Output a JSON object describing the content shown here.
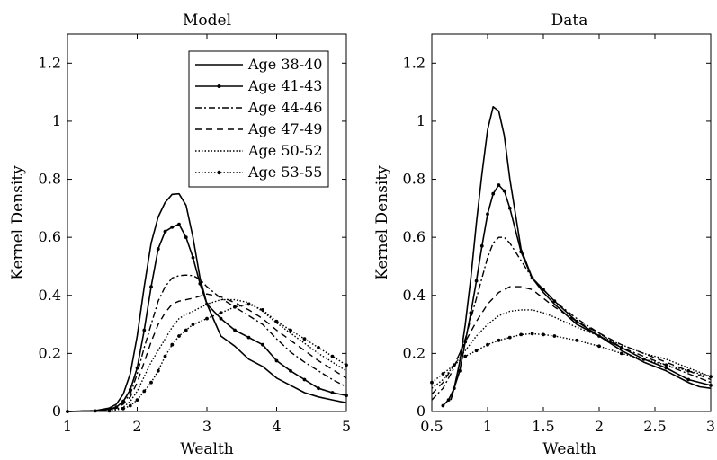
{
  "chart_data": [
    {
      "type": "line",
      "title": "Model",
      "xlabel": "Wealth",
      "ylabel": "Kernel Density",
      "xlim": [
        1,
        5
      ],
      "ylim": [
        0,
        1.3
      ],
      "xticks": [
        1,
        2,
        3,
        4,
        5
      ],
      "yticks": [
        0,
        0.2,
        0.4,
        0.6,
        0.8,
        1,
        1.2
      ],
      "xtick_labels": [
        "1",
        "2",
        "3",
        "4",
        "5"
      ],
      "ytick_labels": [
        "0",
        "0.2",
        "0.4",
        "0.6",
        "0.8",
        "1",
        "1.2"
      ],
      "grid": false,
      "legend_position": "top-right",
      "series": [
        {
          "name": "Age 38-40",
          "style": "solid",
          "marker": false,
          "x": [
            1.0,
            1.4,
            1.6,
            1.7,
            1.8,
            1.9,
            2.0,
            2.1,
            2.2,
            2.3,
            2.4,
            2.5,
            2.6,
            2.7,
            2.8,
            2.9,
            3.0,
            3.2,
            3.4,
            3.6,
            3.8,
            4.0,
            4.2,
            4.4,
            4.6,
            4.8,
            5.0
          ],
          "y": [
            0,
            0.003,
            0.012,
            0.025,
            0.06,
            0.13,
            0.26,
            0.43,
            0.58,
            0.67,
            0.72,
            0.748,
            0.75,
            0.71,
            0.6,
            0.46,
            0.37,
            0.26,
            0.225,
            0.18,
            0.155,
            0.115,
            0.09,
            0.065,
            0.05,
            0.04,
            0.03
          ]
        },
        {
          "name": "Age 41-43",
          "style": "solid",
          "marker": true,
          "x": [
            1.0,
            1.4,
            1.6,
            1.7,
            1.8,
            1.9,
            2.0,
            2.1,
            2.2,
            2.3,
            2.4,
            2.5,
            2.6,
            2.7,
            2.8,
            2.9,
            3.0,
            3.2,
            3.4,
            3.6,
            3.8,
            4.0,
            4.2,
            4.4,
            4.6,
            4.8,
            5.0
          ],
          "y": [
            0,
            0.002,
            0.008,
            0.015,
            0.035,
            0.075,
            0.15,
            0.28,
            0.43,
            0.56,
            0.62,
            0.635,
            0.645,
            0.6,
            0.53,
            0.44,
            0.37,
            0.32,
            0.28,
            0.255,
            0.23,
            0.175,
            0.14,
            0.11,
            0.08,
            0.065,
            0.055
          ]
        },
        {
          "name": "Age 44-46",
          "style": "dashdot",
          "marker": false,
          "x": [
            1.0,
            1.5,
            1.7,
            1.8,
            1.9,
            2.0,
            2.1,
            2.2,
            2.3,
            2.4,
            2.5,
            2.6,
            2.7,
            2.8,
            2.9,
            3.0,
            3.2,
            3.4,
            3.6,
            3.8,
            4.0,
            4.2,
            4.4,
            4.6,
            4.8,
            5.0
          ],
          "y": [
            0,
            0.004,
            0.015,
            0.03,
            0.06,
            0.13,
            0.22,
            0.3,
            0.38,
            0.43,
            0.46,
            0.468,
            0.47,
            0.468,
            0.455,
            0.43,
            0.39,
            0.36,
            0.33,
            0.3,
            0.25,
            0.205,
            0.17,
            0.14,
            0.11,
            0.085
          ]
        },
        {
          "name": "Age 47-49",
          "style": "dashed",
          "marker": false,
          "x": [
            1.0,
            1.5,
            1.7,
            1.8,
            1.9,
            2.0,
            2.1,
            2.2,
            2.3,
            2.4,
            2.5,
            2.6,
            2.7,
            2.8,
            3.0,
            3.2,
            3.4,
            3.6,
            3.8,
            4.0,
            4.2,
            4.4,
            4.6,
            4.8,
            5.0
          ],
          "y": [
            0,
            0.003,
            0.012,
            0.025,
            0.05,
            0.1,
            0.17,
            0.24,
            0.3,
            0.34,
            0.37,
            0.38,
            0.385,
            0.39,
            0.405,
            0.395,
            0.375,
            0.35,
            0.32,
            0.28,
            0.245,
            0.21,
            0.175,
            0.145,
            0.115
          ]
        },
        {
          "name": "Age 50-52",
          "style": "dotted",
          "marker": false,
          "x": [
            1.0,
            1.6,
            1.8,
            1.9,
            2.0,
            2.1,
            2.2,
            2.3,
            2.4,
            2.5,
            2.6,
            2.7,
            2.8,
            3.0,
            3.2,
            3.4,
            3.6,
            3.8,
            4.0,
            4.2,
            4.4,
            4.6,
            4.8,
            5.0
          ],
          "y": [
            0,
            0.004,
            0.015,
            0.035,
            0.07,
            0.12,
            0.17,
            0.21,
            0.25,
            0.29,
            0.32,
            0.335,
            0.345,
            0.37,
            0.385,
            0.385,
            0.375,
            0.345,
            0.305,
            0.27,
            0.235,
            0.2,
            0.17,
            0.14
          ]
        },
        {
          "name": "Age 53-55",
          "style": "dotted",
          "marker": true,
          "x": [
            1.0,
            1.6,
            1.8,
            1.9,
            2.0,
            2.1,
            2.2,
            2.3,
            2.4,
            2.5,
            2.6,
            2.7,
            2.8,
            3.0,
            3.2,
            3.4,
            3.6,
            3.8,
            4.0,
            4.2,
            4.4,
            4.6,
            4.8,
            5.0
          ],
          "y": [
            0,
            0.002,
            0.01,
            0.02,
            0.04,
            0.07,
            0.1,
            0.14,
            0.19,
            0.23,
            0.26,
            0.28,
            0.3,
            0.32,
            0.34,
            0.36,
            0.37,
            0.35,
            0.31,
            0.28,
            0.25,
            0.22,
            0.19,
            0.16
          ]
        }
      ]
    },
    {
      "type": "line",
      "title": "Data",
      "xlabel": "Wealth",
      "ylabel": "Kernel Density",
      "xlim": [
        0.5,
        3
      ],
      "ylim": [
        0,
        1.3
      ],
      "xticks": [
        0.5,
        1,
        1.5,
        2,
        2.5,
        3
      ],
      "yticks": [
        0,
        0.2,
        0.4,
        0.6,
        0.8,
        1,
        1.2
      ],
      "xtick_labels": [
        "0.5",
        "1",
        "1.5",
        "2",
        "2.5",
        "3"
      ],
      "ytick_labels": [
        "0",
        "0.2",
        "0.4",
        "0.6",
        "0.8",
        "1",
        "1.2"
      ],
      "grid": false,
      "series": [
        {
          "name": "Age 38-40",
          "style": "solid",
          "marker": false,
          "x": [
            0.67,
            0.7,
            0.75,
            0.8,
            0.85,
            0.9,
            0.95,
            1.0,
            1.05,
            1.1,
            1.15,
            1.2,
            1.3,
            1.4,
            1.5,
            1.6,
            1.8,
            2.0,
            2.2,
            2.4,
            2.6,
            2.8,
            2.9,
            3.0
          ],
          "y": [
            0.04,
            0.08,
            0.17,
            0.3,
            0.46,
            0.65,
            0.82,
            0.97,
            1.05,
            1.035,
            0.95,
            0.8,
            0.56,
            0.46,
            0.41,
            0.37,
            0.3,
            0.26,
            0.21,
            0.17,
            0.14,
            0.1,
            0.085,
            0.08
          ]
        },
        {
          "name": "Age 41-43",
          "style": "solid",
          "marker": true,
          "x": [
            0.6,
            0.65,
            0.7,
            0.75,
            0.8,
            0.85,
            0.9,
            0.95,
            1.0,
            1.05,
            1.1,
            1.15,
            1.2,
            1.3,
            1.4,
            1.5,
            1.6,
            1.8,
            2.0,
            2.2,
            2.4,
            2.6,
            2.8,
            3.0
          ],
          "y": [
            0.02,
            0.04,
            0.08,
            0.14,
            0.24,
            0.34,
            0.45,
            0.57,
            0.68,
            0.75,
            0.78,
            0.76,
            0.7,
            0.55,
            0.46,
            0.42,
            0.38,
            0.31,
            0.26,
            0.22,
            0.18,
            0.15,
            0.11,
            0.09
          ]
        },
        {
          "name": "Age 44-46",
          "style": "dashdot",
          "marker": false,
          "x": [
            0.5,
            0.6,
            0.7,
            0.8,
            0.85,
            0.9,
            0.95,
            1.0,
            1.05,
            1.1,
            1.15,
            1.2,
            1.3,
            1.4,
            1.5,
            1.6,
            1.8,
            2.0,
            2.2,
            2.4,
            2.6,
            2.8,
            3.0
          ],
          "y": [
            0.04,
            0.08,
            0.15,
            0.25,
            0.32,
            0.39,
            0.46,
            0.53,
            0.58,
            0.6,
            0.6,
            0.58,
            0.52,
            0.46,
            0.42,
            0.38,
            0.32,
            0.27,
            0.22,
            0.19,
            0.16,
            0.13,
            0.1
          ]
        },
        {
          "name": "Age 47-49",
          "style": "dashed",
          "marker": false,
          "x": [
            0.5,
            0.6,
            0.7,
            0.8,
            0.9,
            1.0,
            1.1,
            1.2,
            1.3,
            1.4,
            1.5,
            1.6,
            1.8,
            2.0,
            2.2,
            2.4,
            2.6,
            2.8,
            3.0
          ],
          "y": [
            0.06,
            0.1,
            0.16,
            0.24,
            0.31,
            0.37,
            0.41,
            0.43,
            0.43,
            0.42,
            0.39,
            0.36,
            0.31,
            0.27,
            0.23,
            0.2,
            0.17,
            0.14,
            0.11
          ]
        },
        {
          "name": "Age 50-52",
          "style": "dotted",
          "marker": false,
          "x": [
            0.5,
            0.6,
            0.7,
            0.8,
            0.9,
            1.0,
            1.1,
            1.2,
            1.3,
            1.4,
            1.5,
            1.6,
            1.8,
            2.0,
            2.2,
            2.4,
            2.6,
            2.8,
            3.0
          ],
          "y": [
            0.08,
            0.11,
            0.16,
            0.21,
            0.26,
            0.3,
            0.33,
            0.345,
            0.35,
            0.35,
            0.34,
            0.325,
            0.29,
            0.26,
            0.23,
            0.2,
            0.18,
            0.15,
            0.12
          ]
        },
        {
          "name": "Age 53-55",
          "style": "dotted",
          "marker": true,
          "x": [
            0.5,
            0.6,
            0.7,
            0.8,
            0.9,
            1.0,
            1.1,
            1.2,
            1.3,
            1.4,
            1.5,
            1.6,
            1.8,
            2.0,
            2.2,
            2.4,
            2.6,
            2.8,
            3.0
          ],
          "y": [
            0.1,
            0.13,
            0.16,
            0.19,
            0.21,
            0.23,
            0.245,
            0.255,
            0.265,
            0.268,
            0.265,
            0.26,
            0.245,
            0.225,
            0.2,
            0.18,
            0.16,
            0.14,
            0.12
          ]
        }
      ]
    }
  ]
}
